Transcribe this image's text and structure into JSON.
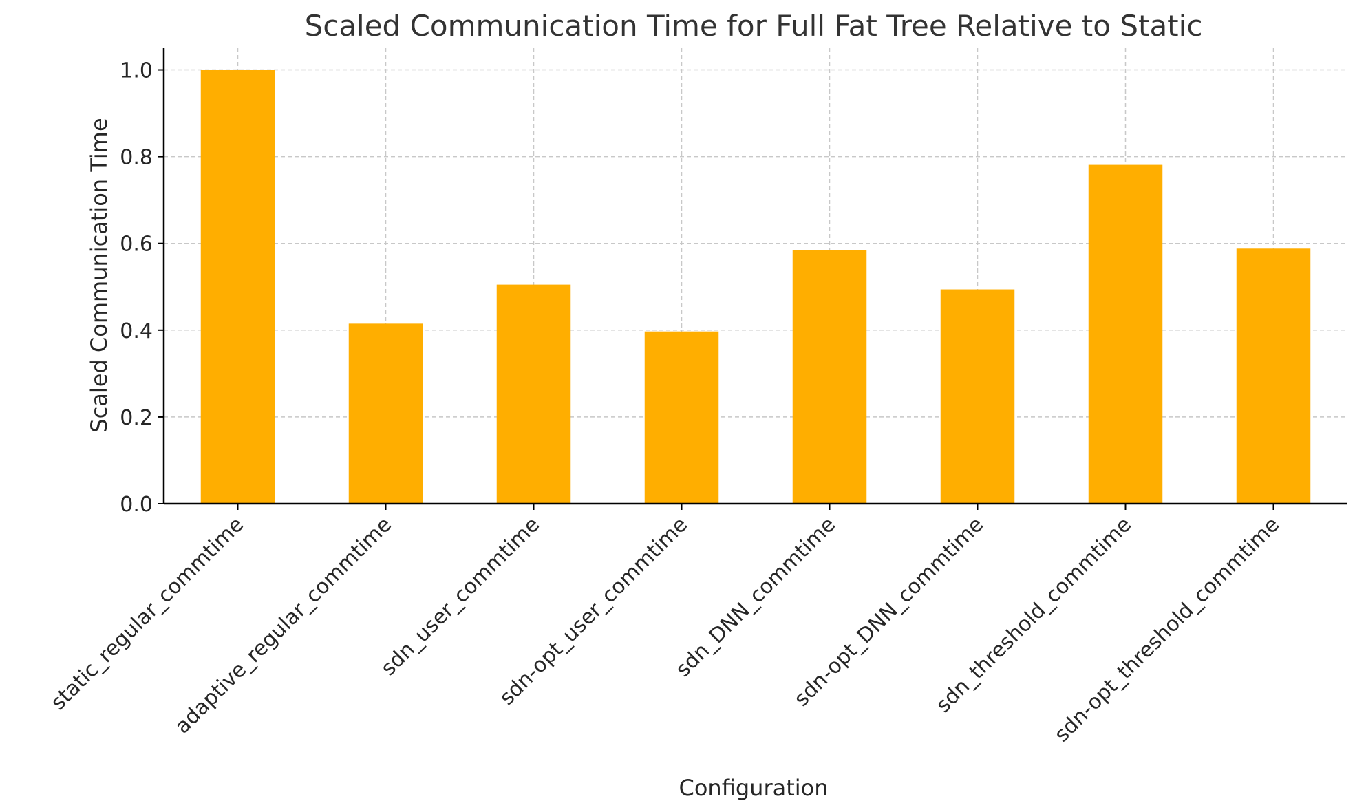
{
  "chart_data": {
    "type": "bar",
    "title": "Scaled Communication Time for Full Fat Tree Relative to Static",
    "xlabel": "Configuration",
    "ylabel": "Scaled Communication Time",
    "categories": [
      "static_regular_commtime",
      "adaptive_regular_commtime",
      "sdn_user_commtime",
      "sdn-opt_user_commtime",
      "sdn_DNN_commtime",
      "sdn-opt_DNN_commtime",
      "sdn_threshold_commtime",
      "sdn-opt_threshold_commtime"
    ],
    "values": [
      1.0,
      0.415,
      0.505,
      0.397,
      0.585,
      0.494,
      0.781,
      0.588
    ],
    "ylim": [
      0,
      1.05
    ],
    "yticks": [
      "0.0",
      "0.2",
      "0.4",
      "0.6",
      "0.8",
      "1.0"
    ],
    "grid": true,
    "bar_color": "#FFAE00"
  }
}
